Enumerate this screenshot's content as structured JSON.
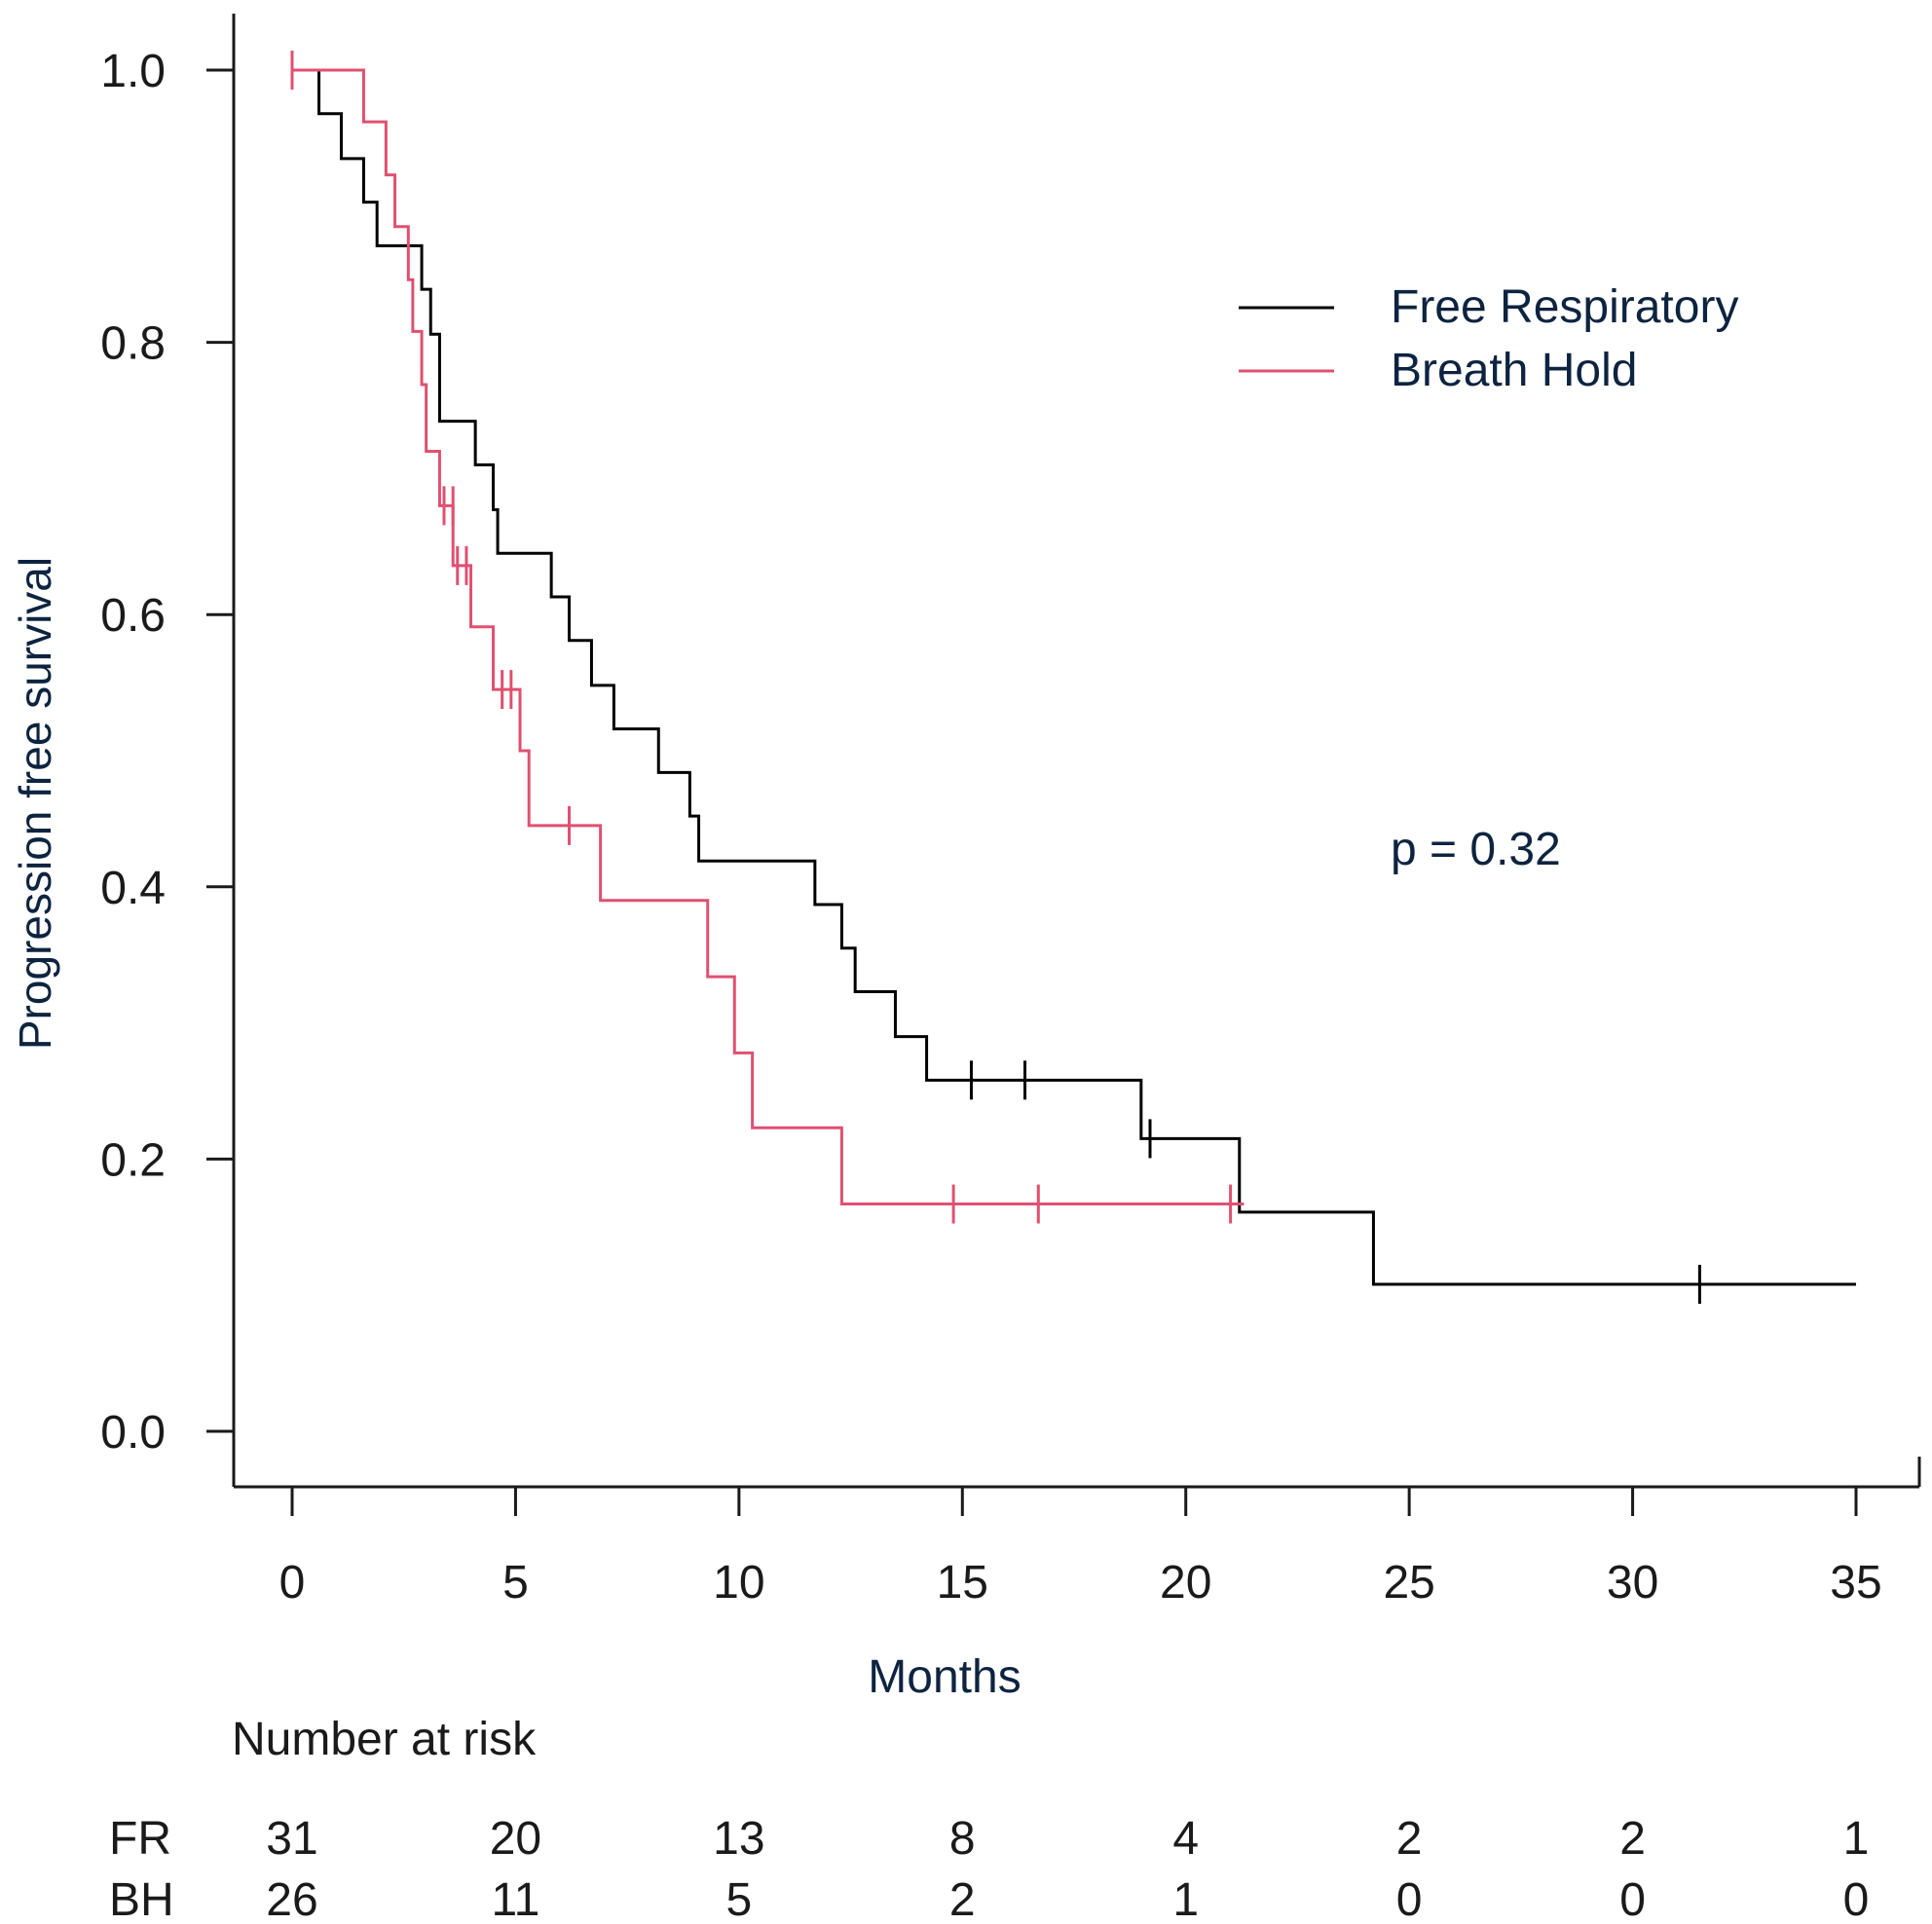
{
  "chart_data": {
    "type": "line",
    "subtype": "kaplan-meier",
    "title": "",
    "xlabel": "Months",
    "ylabel": "Progression free survival",
    "xlim": [
      -1.5,
      36.5
    ],
    "ylim": [
      -0.04,
      1.04
    ],
    "xticks": [
      "0",
      "5",
      "10",
      "15",
      "20",
      "25",
      "30",
      "35"
    ],
    "yticks": [
      "0.0",
      "0.2",
      "0.4",
      "0.6",
      "0.8",
      "1.0"
    ],
    "grid": false,
    "legend_position": "top-right",
    "annotation": "p = 0.32",
    "series": [
      {
        "name": "Free Respiratory",
        "color": "#000000",
        "steps": [
          [
            0,
            1.0
          ],
          [
            0.6,
            0.968
          ],
          [
            1.1,
            0.935
          ],
          [
            1.6,
            0.903
          ],
          [
            1.9,
            0.871
          ],
          [
            2.9,
            0.839
          ],
          [
            3.1,
            0.806
          ],
          [
            3.3,
            0.742
          ],
          [
            4.1,
            0.71
          ],
          [
            4.5,
            0.677
          ],
          [
            4.6,
            0.645
          ],
          [
            5.8,
            0.613
          ],
          [
            6.2,
            0.581
          ],
          [
            6.7,
            0.548
          ],
          [
            7.2,
            0.516
          ],
          [
            8.2,
            0.484
          ],
          [
            8.9,
            0.452
          ],
          [
            9.1,
            0.419
          ],
          [
            11.7,
            0.387
          ],
          [
            12.3,
            0.355
          ],
          [
            12.6,
            0.323
          ],
          [
            13.5,
            0.29
          ],
          [
            14.2,
            0.258
          ],
          [
            19.0,
            0.215
          ],
          [
            21.2,
            0.161
          ],
          [
            24.2,
            0.108
          ],
          [
            35.0,
            0.108
          ]
        ],
        "censored": [
          [
            15.2,
            0.258
          ],
          [
            16.4,
            0.258
          ],
          [
            19.2,
            0.215
          ],
          [
            31.5,
            0.108
          ]
        ]
      },
      {
        "name": "Breath Hold",
        "color": "#e05070",
        "steps": [
          [
            0,
            1.0
          ],
          [
            1.6,
            0.962
          ],
          [
            2.1,
            0.923
          ],
          [
            2.3,
            0.885
          ],
          [
            2.6,
            0.846
          ],
          [
            2.7,
            0.808
          ],
          [
            2.9,
            0.769
          ],
          [
            3.0,
            0.72
          ],
          [
            3.3,
            0.68
          ],
          [
            3.6,
            0.636
          ],
          [
            4.0,
            0.591
          ],
          [
            4.5,
            0.545
          ],
          [
            5.1,
            0.5
          ],
          [
            5.3,
            0.445
          ],
          [
            6.9,
            0.39
          ],
          [
            9.3,
            0.334
          ],
          [
            9.9,
            0.278
          ],
          [
            10.3,
            0.223
          ],
          [
            12.3,
            0.167
          ],
          [
            21.3,
            0.167
          ]
        ],
        "censored": [
          [
            0,
            1.0
          ],
          [
            3.4,
            0.68
          ],
          [
            3.6,
            0.68
          ],
          [
            3.7,
            0.636
          ],
          [
            3.9,
            0.636
          ],
          [
            4.7,
            0.545
          ],
          [
            4.9,
            0.545
          ],
          [
            6.2,
            0.445
          ],
          [
            14.8,
            0.167
          ],
          [
            16.7,
            0.167
          ],
          [
            21.0,
            0.167
          ]
        ]
      }
    ],
    "risk_table": {
      "title": "Number at risk",
      "rows": [
        {
          "label": "FR",
          "values": [
            "31",
            "20",
            "13",
            "8",
            "4",
            "2",
            "2",
            "1"
          ]
        },
        {
          "label": "BH",
          "values": [
            "26",
            "11",
            "5",
            "2",
            "1",
            "0",
            "0",
            "0"
          ]
        }
      ]
    }
  }
}
